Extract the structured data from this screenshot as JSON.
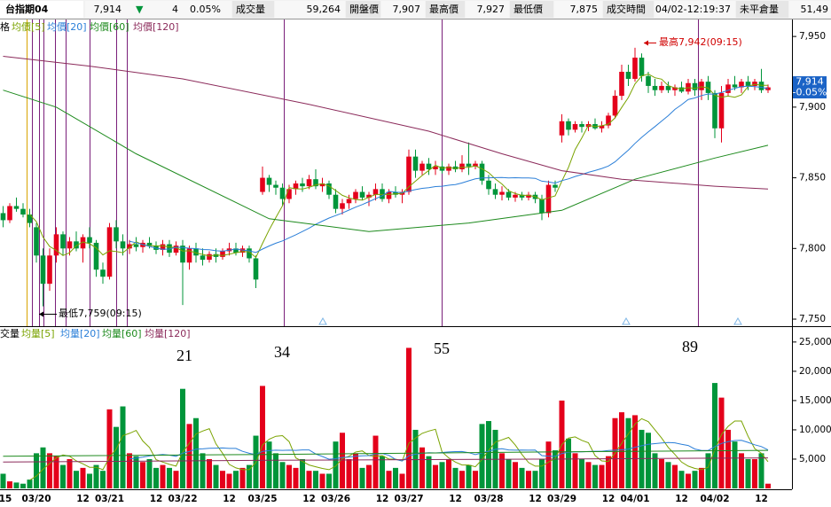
{
  "header": {
    "symbol": "台指期04",
    "last": "7,914",
    "arrow": "▼",
    "change": "4",
    "change_pct": "0.05%",
    "fields": [
      {
        "label": "成交量",
        "value": "59,264"
      },
      {
        "label": "開盤價",
        "value": "7,907"
      },
      {
        "label": "最高價",
        "value": "7,927"
      },
      {
        "label": "最低價",
        "value": "7,875"
      },
      {
        "label": "成交時間",
        "value": "04/02-12:19:37"
      },
      {
        "label": "未平倉量",
        "value": "51,49"
      }
    ]
  },
  "price_tag": {
    "price": "7,914",
    "change": "-0.05%"
  },
  "chart_data": [
    {
      "type": "candlestick",
      "legend_lead": "格",
      "up_color": "#e4001b",
      "down_color": "#00953a",
      "ylim": [
        7745,
        7962
      ],
      "yticks": [
        {
          "value": 7750,
          "label": "7,750"
        },
        {
          "value": 7800,
          "label": "7,800"
        },
        {
          "value": 7850,
          "label": "7,850"
        },
        {
          "value": 7900,
          "label": "7,900"
        },
        {
          "value": 7950,
          "label": "7,950"
        }
      ],
      "annotations": {
        "high": "最高7,942(09:15)",
        "low": "最低7,759(09:15)"
      },
      "ohlc": [
        [
          7825,
          7830,
          7815,
          7820
        ],
        [
          7820,
          7832,
          7818,
          7830
        ],
        [
          7830,
          7836,
          7826,
          7828
        ],
        [
          7828,
          7832,
          7822,
          7824
        ],
        [
          7824,
          7828,
          7815,
          7818
        ],
        [
          7815,
          7818,
          7790,
          7795
        ],
        [
          7795,
          7800,
          7759,
          7775
        ],
        [
          7775,
          7800,
          7770,
          7795
        ],
        [
          7795,
          7815,
          7790,
          7810
        ],
        [
          7810,
          7812,
          7795,
          7800
        ],
        [
          7800,
          7808,
          7795,
          7805
        ],
        [
          7805,
          7812,
          7798,
          7800
        ],
        [
          7800,
          7810,
          7790,
          7808
        ],
        [
          7808,
          7815,
          7800,
          7804
        ],
        [
          7804,
          7806,
          7780,
          7785
        ],
        [
          7785,
          7790,
          7775,
          7780
        ],
        [
          7780,
          7818,
          7778,
          7815
        ],
        [
          7815,
          7820,
          7800,
          7805
        ],
        [
          7805,
          7810,
          7795,
          7800
        ],
        [
          7800,
          7806,
          7796,
          7803
        ],
        [
          7803,
          7808,
          7798,
          7801
        ],
        [
          7801,
          7806,
          7797,
          7804
        ],
        [
          7804,
          7808,
          7800,
          7802
        ],
        [
          7802,
          7805,
          7796,
          7799
        ],
        [
          7799,
          7806,
          7795,
          7803
        ],
        [
          7803,
          7806,
          7794,
          7797
        ],
        [
          7797,
          7805,
          7795,
          7802
        ],
        [
          7802,
          7806,
          7760,
          7790
        ],
        [
          7790,
          7802,
          7785,
          7800
        ],
        [
          7800,
          7804,
          7790,
          7795
        ],
        [
          7795,
          7800,
          7788,
          7792
        ],
        [
          7792,
          7798,
          7790,
          7796
        ],
        [
          7796,
          7800,
          7790,
          7794
        ],
        [
          7794,
          7800,
          7792,
          7798
        ],
        [
          7798,
          7804,
          7795,
          7800
        ],
        [
          7800,
          7804,
          7795,
          7797
        ],
        [
          7797,
          7802,
          7794,
          7800
        ],
        [
          7800,
          7802,
          7790,
          7793
        ],
        [
          7793,
          7795,
          7772,
          7778
        ],
        [
          7840,
          7858,
          7838,
          7850
        ],
        [
          7850,
          7852,
          7840,
          7845
        ],
        [
          7845,
          7848,
          7838,
          7843
        ],
        [
          7843,
          7846,
          7830,
          7835
        ],
        [
          7835,
          7845,
          7832,
          7842
        ],
        [
          7842,
          7848,
          7838,
          7846
        ],
        [
          7846,
          7850,
          7840,
          7844
        ],
        [
          7844,
          7852,
          7842,
          7849
        ],
        [
          7849,
          7856,
          7842,
          7844
        ],
        [
          7844,
          7850,
          7840,
          7846
        ],
        [
          7846,
          7848,
          7835,
          7838
        ],
        [
          7838,
          7842,
          7825,
          7828
        ],
        [
          7828,
          7835,
          7824,
          7832
        ],
        [
          7832,
          7838,
          7828,
          7835
        ],
        [
          7835,
          7842,
          7832,
          7840
        ],
        [
          7840,
          7844,
          7834,
          7836
        ],
        [
          7836,
          7840,
          7830,
          7838
        ],
        [
          7838,
          7846,
          7834,
          7842
        ],
        [
          7842,
          7846,
          7833,
          7835
        ],
        [
          7835,
          7842,
          7832,
          7840
        ],
        [
          7840,
          7844,
          7836,
          7838
        ],
        [
          7838,
          7842,
          7832,
          7840
        ],
        [
          7840,
          7870,
          7838,
          7865
        ],
        [
          7865,
          7870,
          7850,
          7855
        ],
        [
          7855,
          7862,
          7852,
          7860
        ],
        [
          7860,
          7864,
          7852,
          7856
        ],
        [
          7856,
          7862,
          7852,
          7858
        ],
        [
          7858,
          7862,
          7853,
          7855
        ],
        [
          7855,
          7860,
          7852,
          7858
        ],
        [
          7858,
          7862,
          7854,
          7856
        ],
        [
          7856,
          7866,
          7854,
          7860
        ],
        [
          7860,
          7875,
          7852,
          7858
        ],
        [
          7858,
          7862,
          7856,
          7860
        ],
        [
          7860,
          7862,
          7845,
          7848
        ],
        [
          7848,
          7852,
          7838,
          7842
        ],
        [
          7842,
          7846,
          7835,
          7838
        ],
        [
          7838,
          7844,
          7834,
          7840
        ],
        [
          7840,
          7842,
          7834,
          7836
        ],
        [
          7836,
          7840,
          7833,
          7838
        ],
        [
          7838,
          7840,
          7834,
          7836
        ],
        [
          7836,
          7840,
          7834,
          7838
        ],
        [
          7838,
          7840,
          7832,
          7835
        ],
        [
          7835,
          7838,
          7820,
          7825
        ],
        [
          7825,
          7848,
          7822,
          7845
        ],
        [
          7845,
          7848,
          7840,
          7843
        ],
        [
          7880,
          7895,
          7875,
          7890
        ],
        [
          7890,
          7892,
          7880,
          7884
        ],
        [
          7884,
          7890,
          7882,
          7888
        ],
        [
          7888,
          7890,
          7882,
          7886
        ],
        [
          7886,
          7890,
          7883,
          7888
        ],
        [
          7888,
          7892,
          7884,
          7885
        ],
        [
          7885,
          7890,
          7882,
          7887
        ],
        [
          7887,
          7896,
          7885,
          7894
        ],
        [
          7894,
          7912,
          7892,
          7908
        ],
        [
          7908,
          7930,
          7905,
          7925
        ],
        [
          7925,
          7930,
          7915,
          7920
        ],
        [
          7920,
          7942,
          7918,
          7935
        ],
        [
          7935,
          7938,
          7918,
          7922
        ],
        [
          7922,
          7925,
          7910,
          7915
        ],
        [
          7915,
          7920,
          7908,
          7912
        ],
        [
          7912,
          7918,
          7910,
          7915
        ],
        [
          7915,
          7918,
          7910,
          7912
        ],
        [
          7912,
          7916,
          7908,
          7914
        ],
        [
          7914,
          7918,
          7910,
          7911
        ],
        [
          7911,
          7920,
          7909,
          7917
        ],
        [
          7917,
          7920,
          7908,
          7912
        ],
        [
          7912,
          7920,
          7905,
          7918
        ],
        [
          7918,
          7922,
          7905,
          7910
        ],
        [
          7910,
          7912,
          7878,
          7885
        ],
        [
          7885,
          7915,
          7875,
          7910
        ],
        [
          7910,
          7920,
          7908,
          7916
        ],
        [
          7916,
          7922,
          7912,
          7914
        ],
        [
          7914,
          7920,
          7910,
          7918
        ],
        [
          7918,
          7922,
          7912,
          7915
        ],
        [
          7915,
          7920,
          7912,
          7918
        ],
        [
          7918,
          7927,
          7910,
          7912
        ],
        [
          7912,
          7916,
          7910,
          7914
        ]
      ],
      "series": [
        {
          "name": "均價[5]",
          "color": "#7aa300",
          "period": 5
        },
        {
          "name": "均價[20]",
          "color": "#2b7fd8",
          "period": 20
        },
        {
          "name": "均價[60]",
          "color": "#1d8a1d",
          "x": [
            0,
            8,
            20,
            40,
            55,
            70,
            84,
            95,
            107,
            115
          ],
          "values": [
            7912,
            7900,
            7867,
            7821,
            7812,
            7818,
            7827,
            7849,
            7864,
            7873
          ]
        },
        {
          "name": "均價[120]",
          "color": "#8b2a5a",
          "x": [
            0,
            13,
            27,
            46,
            64,
            75,
            84,
            93,
            107,
            115
          ],
          "values": [
            7936,
            7929,
            7920,
            7902,
            7883,
            7867,
            7855,
            7849,
            7844,
            7842
          ]
        }
      ]
    },
    {
      "type": "bar",
      "legend_lead": "交量",
      "ylim": [
        0,
        27400
      ],
      "yticks": [
        {
          "value": 5000,
          "label": "5,000"
        },
        {
          "value": 10000,
          "label": "10,000"
        },
        {
          "value": 15000,
          "label": "15,000"
        },
        {
          "value": 20000,
          "label": "20,000"
        },
        {
          "value": 25000,
          "label": "25,000"
        }
      ],
      "annotations": [
        "21",
        "34",
        "55",
        "89"
      ],
      "categories": [
        "15",
        null,
        null,
        null,
        null,
        "03/20",
        null,
        null,
        null,
        null,
        null,
        null,
        "12",
        null,
        null,
        null,
        "03/21",
        null,
        null,
        null,
        null,
        null,
        null,
        "12",
        null,
        null,
        null,
        "03/22",
        null,
        null,
        null,
        null,
        null,
        null,
        "12",
        null,
        null,
        null,
        null,
        "03/25",
        null,
        null,
        null,
        null,
        null,
        null,
        "12",
        null,
        null,
        null,
        "03/26",
        null,
        null,
        null,
        null,
        null,
        null,
        "12",
        null,
        null,
        null,
        "03/27",
        null,
        null,
        null,
        null,
        null,
        null,
        "12",
        null,
        null,
        null,
        null,
        "03/28",
        null,
        null,
        null,
        null,
        null,
        null,
        "12",
        null,
        null,
        null,
        "03/29",
        null,
        null,
        null,
        null,
        null,
        null,
        "12",
        null,
        null,
        null,
        "04/01",
        null,
        null,
        null,
        null,
        null,
        null,
        "12",
        null,
        null,
        null,
        null,
        "04/02",
        null,
        null,
        null,
        null,
        null,
        null,
        "12",
        null
      ],
      "values": [
        2500,
        1200,
        1000,
        800,
        1500,
        6000,
        7000,
        6000,
        5500,
        4000,
        5000,
        3000,
        3500,
        2500,
        4000,
        3000,
        13500,
        10500,
        14000,
        6000,
        5500,
        4500,
        5000,
        3500,
        4000,
        3500,
        3000,
        17000,
        11000,
        12000,
        6000,
        5000,
        4000,
        3000,
        2500,
        3000,
        3500,
        4000,
        9000,
        17500,
        8000,
        6000,
        4500,
        4000,
        3500,
        5000,
        3000,
        3000,
        2500,
        2500,
        8000,
        9500,
        5000,
        6000,
        3500,
        4000,
        9000,
        5500,
        3000,
        3500,
        2500,
        24000,
        10000,
        7000,
        5500,
        4000,
        4500,
        5000,
        3500,
        3000,
        4000,
        3000,
        11000,
        11500,
        10000,
        6000,
        5000,
        4500,
        3500,
        3000,
        3000,
        5000,
        8000,
        6500,
        15000,
        8500,
        6000,
        5000,
        4500,
        4000,
        4000,
        5500,
        12000,
        13000,
        12000,
        12500,
        10000,
        9500,
        6000,
        5000,
        4500,
        4000,
        3000,
        2500,
        3000,
        3500,
        6000,
        18000,
        15500,
        10000,
        8000,
        6000,
        5000,
        5000,
        6000,
        800
      ],
      "series": [
        {
          "name": "均量[5]",
          "color": "#7aa300",
          "period": 5
        },
        {
          "name": "均量[20]",
          "color": "#2b7fd8",
          "period": 20
        },
        {
          "name": "均量[60]",
          "color": "#1d8a1d",
          "x": [
            0,
            40,
            80,
            115
          ],
          "values": [
            5500,
            5800,
            6200,
            6500
          ]
        },
        {
          "name": "均量[120]",
          "color": "#8b2a5a",
          "x": [
            0,
            40,
            80,
            115
          ],
          "values": [
            4500,
            4800,
            5000,
            5200
          ]
        }
      ]
    }
  ]
}
